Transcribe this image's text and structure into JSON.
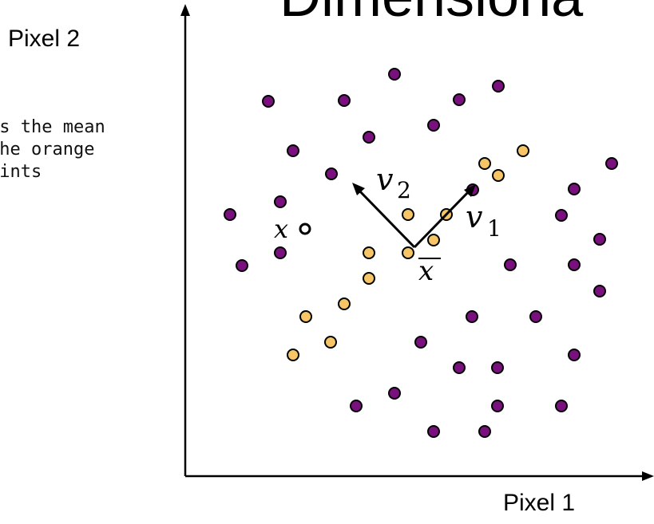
{
  "title": "Dimensiona",
  "axes": {
    "xlabel": "Pixel 1",
    "ylabel": "Pixel 2"
  },
  "note": {
    "lines": [
      "is the mean",
      "the orange",
      "oints"
    ]
  },
  "labels": {
    "x": "x",
    "v1": "v",
    "v1_sub": "1",
    "v2": "v",
    "v2_sub": "2",
    "xbar": "x"
  },
  "colors": {
    "purple": "#7a0f7e",
    "orange": "#f6c565",
    "axis": "#000000"
  },
  "legend": "none"
}
